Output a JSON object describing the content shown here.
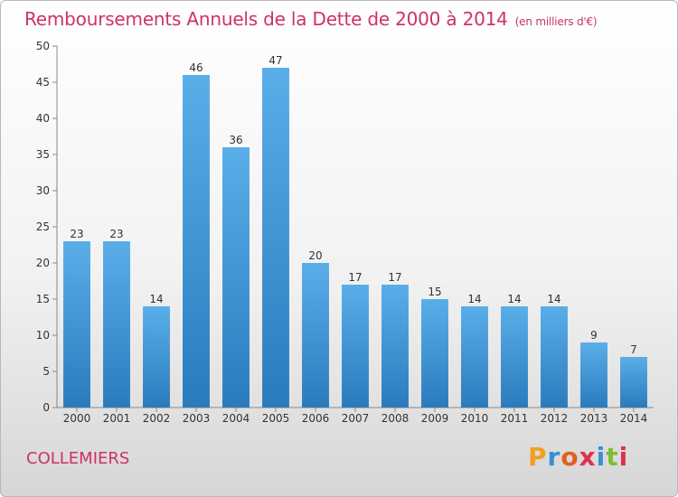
{
  "chart_data": {
    "type": "bar",
    "title": "Remboursements Annuels de la Dette de 2000 à 2014",
    "unit": "(en milliers d'€)",
    "categories": [
      "2000",
      "2001",
      "2002",
      "2003",
      "2004",
      "2005",
      "2006",
      "2007",
      "2008",
      "2009",
      "2010",
      "2011",
      "2012",
      "2013",
      "2014"
    ],
    "values": [
      23,
      23,
      14,
      46,
      36,
      47,
      20,
      17,
      17,
      15,
      14,
      14,
      14,
      9,
      7
    ],
    "ylim": [
      0,
      50
    ],
    "yticks": [
      0,
      5,
      10,
      15,
      20,
      25,
      30,
      35,
      40,
      45,
      50
    ],
    "grid": false,
    "bar_color_top": "#5aaee8",
    "bar_color_bottom": "#2a7bbd"
  },
  "footer": {
    "commune": "COLLEMIERS",
    "logo_letters": [
      {
        "ch": "P",
        "color": "#f0a020"
      },
      {
        "ch": "r",
        "color": "#3a8fd0"
      },
      {
        "ch": "o",
        "color": "#e06020"
      },
      {
        "ch": "x",
        "color": "#e03050"
      },
      {
        "ch": "i",
        "color": "#3a8fd0"
      },
      {
        "ch": "t",
        "color": "#7bbf30"
      },
      {
        "ch": "i",
        "color": "#e03050"
      }
    ]
  }
}
